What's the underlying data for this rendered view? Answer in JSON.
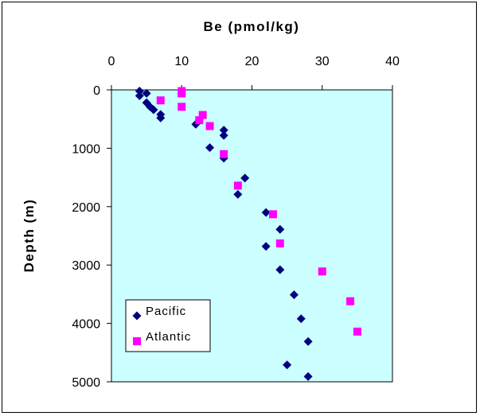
{
  "chart_data": {
    "type": "scatter",
    "xlabel": "Be (pmol/kg)",
    "ylabel": "Depth (m)",
    "xlim": [
      0,
      40
    ],
    "ylim": [
      0,
      5000
    ],
    "y_inverted": true,
    "x_axis_position": "top",
    "x_ticks": [
      0,
      10,
      20,
      30,
      40
    ],
    "y_ticks": [
      0,
      1000,
      2000,
      3000,
      4000,
      5000
    ],
    "grid": false,
    "legend_position": "bottom-left",
    "plot_background": "#CCFFFF",
    "series": [
      {
        "name": "Pacific",
        "marker": "diamond",
        "color": "#000080",
        "points": [
          {
            "x": 4,
            "y": 20
          },
          {
            "x": 5,
            "y": 60
          },
          {
            "x": 4,
            "y": 100
          },
          {
            "x": 5,
            "y": 220
          },
          {
            "x": 5.5,
            "y": 290
          },
          {
            "x": 6,
            "y": 340
          },
          {
            "x": 7,
            "y": 420
          },
          {
            "x": 7,
            "y": 480
          },
          {
            "x": 12,
            "y": 590
          },
          {
            "x": 16,
            "y": 690
          },
          {
            "x": 16,
            "y": 780
          },
          {
            "x": 14,
            "y": 990
          },
          {
            "x": 16,
            "y": 1170
          },
          {
            "x": 19,
            "y": 1510
          },
          {
            "x": 18,
            "y": 1790
          },
          {
            "x": 22,
            "y": 2100
          },
          {
            "x": 24,
            "y": 2390
          },
          {
            "x": 22,
            "y": 2680
          },
          {
            "x": 24,
            "y": 3080
          },
          {
            "x": 26,
            "y": 3510
          },
          {
            "x": 27,
            "y": 3920
          },
          {
            "x": 28,
            "y": 4310
          },
          {
            "x": 25,
            "y": 4710
          },
          {
            "x": 28,
            "y": 4910
          }
        ]
      },
      {
        "name": "Atlantic",
        "marker": "square",
        "color": "#FF00FF",
        "points": [
          {
            "x": 10,
            "y": 20
          },
          {
            "x": 10,
            "y": 60
          },
          {
            "x": 7,
            "y": 180
          },
          {
            "x": 10,
            "y": 290
          },
          {
            "x": 13,
            "y": 430
          },
          {
            "x": 12.5,
            "y": 520
          },
          {
            "x": 14,
            "y": 620
          },
          {
            "x": 16,
            "y": 1100
          },
          {
            "x": 18,
            "y": 1640
          },
          {
            "x": 23,
            "y": 2130
          },
          {
            "x": 24,
            "y": 2630
          },
          {
            "x": 30,
            "y": 3110
          },
          {
            "x": 34,
            "y": 3620
          },
          {
            "x": 35,
            "y": 4140
          }
        ]
      }
    ]
  }
}
